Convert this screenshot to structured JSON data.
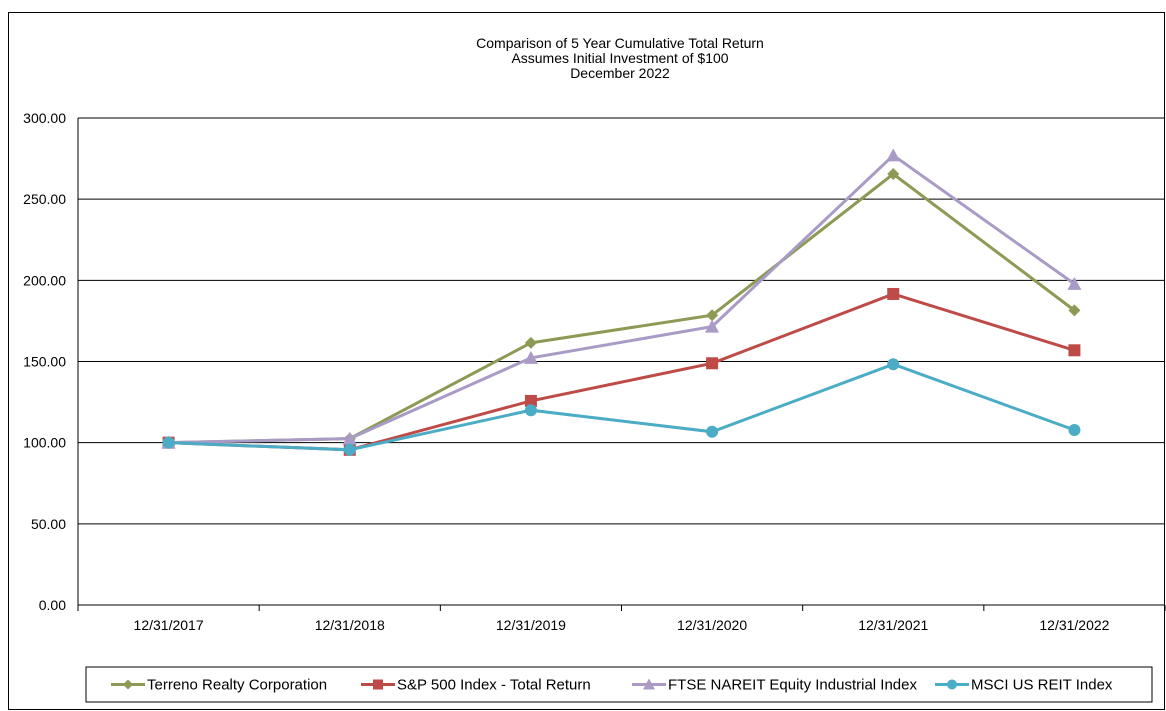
{
  "chart_data": {
    "type": "line",
    "title": "Comparison of 5 Year Cumulative Total Return",
    "subtitle": "Assumes Initial Investment of $100",
    "subtitle2": "December 2022",
    "xlabel": "",
    "ylabel": "",
    "categories": [
      "12/31/2017",
      "12/31/2018",
      "12/31/2019",
      "12/31/2020",
      "12/31/2021",
      "12/31/2022"
    ],
    "y_ticks": [
      "0.00",
      "50.00",
      "100.00",
      "150.00",
      "200.00",
      "250.00",
      "300.00"
    ],
    "ylim": [
      0,
      300
    ],
    "grid": "horizontal",
    "legend_position": "bottom",
    "series": [
      {
        "name": "Terreno Realty Corporation",
        "values": [
          100.0,
          102.5,
          161.5,
          178.5,
          265.5,
          181.5
        ],
        "color": "#8c9a55",
        "marker": "diamond"
      },
      {
        "name": "S&P 500 Index - Total Return",
        "values": [
          100.0,
          95.6,
          125.7,
          148.9,
          191.6,
          156.9
        ],
        "color": "#be4b48",
        "marker": "square"
      },
      {
        "name": "FTSE NAREIT Equity Industrial Index",
        "values": [
          100.0,
          102.5,
          152.2,
          171.5,
          277.0,
          197.8
        ],
        "color": "#a99bc6",
        "marker": "triangle"
      },
      {
        "name": "MSCI US REIT Index",
        "values": [
          100.0,
          95.6,
          120.0,
          106.7,
          148.3,
          107.8
        ],
        "color": "#4aacc5",
        "marker": "circle"
      }
    ]
  }
}
